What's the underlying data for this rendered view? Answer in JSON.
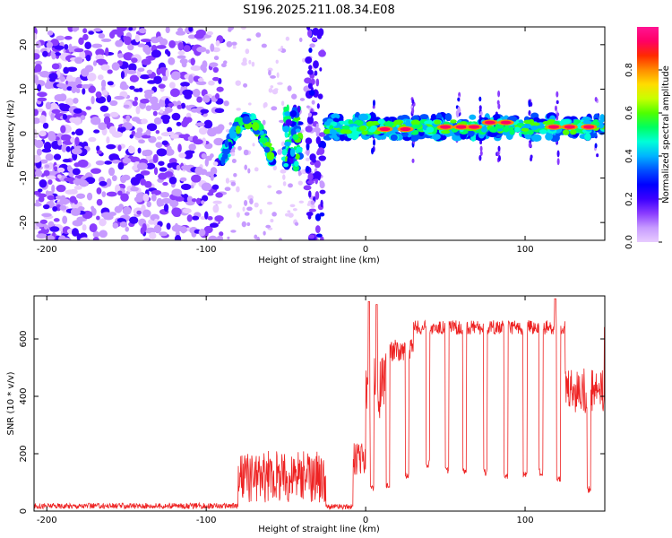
{
  "title": "S196.2025.211.08.34.E08",
  "chart_data": [
    {
      "type": "heatmap",
      "xlabel": "Height of straight line (km)",
      "ylabel": "Frequency (Hz)",
      "xlim": [
        -208,
        150
      ],
      "ylim": [
        -24,
        24
      ],
      "xticks": [
        -200,
        -100,
        0,
        100
      ],
      "yticks": [
        -20,
        -10,
        0,
        10,
        20
      ],
      "colorbar": {
        "label": "Normalized spectral amplitude",
        "range": [
          0,
          1
        ],
        "ticks": [
          "0.0",
          "0.2",
          "0.4",
          "0.6",
          "0.8"
        ],
        "colors": [
          "#e8ccff",
          "#c79bff",
          "#8a3cff",
          "#3c00ff",
          "#0000ff",
          "#0050ff",
          "#00b4ff",
          "#00ffd8",
          "#00ff60",
          "#50ff00",
          "#c8ff00",
          "#ffdc00",
          "#ff8c00",
          "#ff2a00",
          "#ff0064",
          "#ff1493"
        ]
      },
      "regions": {
        "noise": {
          "x_from": -208,
          "x_to": -90,
          "freq_range": [
            -24,
            24
          ],
          "level": 0.15
        },
        "arc": {
          "x_from": -90,
          "x_to": -58,
          "freq_peak": 3,
          "freq_edges": -6,
          "level": 0.5
        },
        "bursts": [
          {
            "x": -46,
            "freq_range": [
              -8,
              6
            ],
            "level": 0.45
          },
          {
            "x": -32,
            "freq_range": [
              -24,
              24
            ],
            "level": 0.2
          }
        ],
        "band": {
          "x_from": -25,
          "x_to": 150,
          "freq": 1.5,
          "level": 0.65
        },
        "peaks": [
          {
            "x": 12,
            "freq": 1
          },
          {
            "x": 25,
            "freq": 1
          },
          {
            "x": 50,
            "freq": 1.5
          },
          {
            "x": 60,
            "freq": 1.5
          },
          {
            "x": 68,
            "freq": 1.5
          },
          {
            "x": 78,
            "freq": 2.5
          },
          {
            "x": 88,
            "freq": 2.5
          },
          {
            "x": 118,
            "freq": 1.5
          },
          {
            "x": 128,
            "freq": 1.5
          },
          {
            "x": 140,
            "freq": 1.5
          }
        ],
        "spikes_x": [
          5,
          30,
          58,
          72,
          83,
          103,
          120,
          145
        ]
      }
    },
    {
      "type": "line",
      "xlabel": "Height of straight line (km)",
      "ylabel": "SNR (10 * v/v)",
      "xlim": [
        -208,
        150
      ],
      "ylim": [
        0,
        750
      ],
      "xticks": [
        -200,
        -100,
        0,
        100
      ],
      "yticks": [
        0,
        200,
        400,
        600
      ],
      "series_color": "#ee2222",
      "segments": [
        {
          "x_from": -208,
          "x_to": -80,
          "level": 18,
          "noise": 10
        },
        {
          "x_from": -80,
          "x_to": -25,
          "level": 120,
          "noise": 90
        },
        {
          "x_from": -25,
          "x_to": -8,
          "level": 15,
          "noise": 10
        },
        {
          "x_from": -8,
          "x_to": 0,
          "level": 180,
          "noise": 60
        },
        {
          "x_from": 0,
          "x_to": 12,
          "level": 420,
          "noise": 120
        },
        {
          "x_from": 12,
          "x_to": 30,
          "level": 560,
          "noise": 40
        },
        {
          "x_from": 30,
          "x_to": 125,
          "level": 640,
          "noise": 25
        },
        {
          "x_from": 125,
          "x_to": 150,
          "level": 420,
          "noise": 80
        }
      ],
      "dips": [
        {
          "x": 4,
          "y": 60
        },
        {
          "x": 14,
          "y": 70
        },
        {
          "x": 26,
          "y": 110
        },
        {
          "x": 39,
          "y": 150
        },
        {
          "x": 51,
          "y": 130
        },
        {
          "x": 62,
          "y": 130
        },
        {
          "x": 75,
          "y": 120
        },
        {
          "x": 88,
          "y": 110
        },
        {
          "x": 100,
          "y": 110
        },
        {
          "x": 110,
          "y": 120
        },
        {
          "x": 121,
          "y": 100
        },
        {
          "x": 140,
          "y": 60
        }
      ],
      "peaks": [
        {
          "x": 2,
          "y": 730
        },
        {
          "x": 7,
          "y": 720
        },
        {
          "x": 119,
          "y": 740
        },
        {
          "x": 150,
          "y": 640
        }
      ]
    }
  ]
}
